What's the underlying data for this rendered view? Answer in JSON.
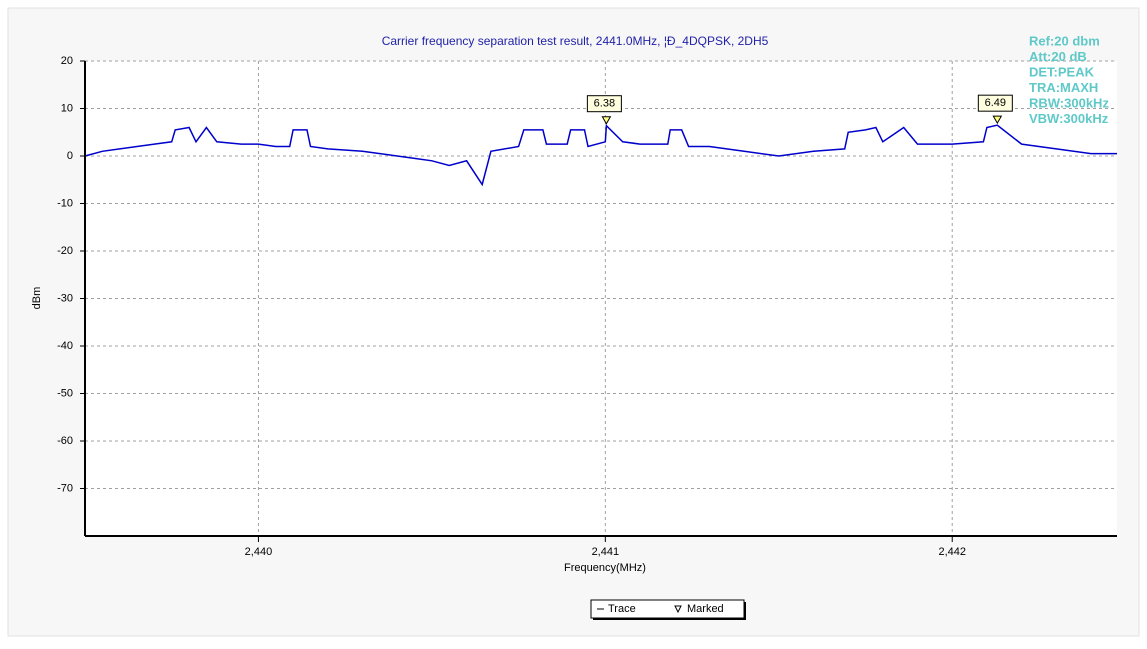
{
  "chart_data": {
    "type": "line",
    "title": "Carrier frequency separation test result, 2441.0MHz, ¦Ð_4DQPSK, 2DH5",
    "xlabel": "Frequency(MHz)",
    "ylabel": "dBm",
    "info": [
      "Ref:20 dbm",
      "Att:20 dB",
      "DET:PEAK",
      "TRA:MAXH",
      "RBW:300kHz",
      "VBW:300kHz"
    ],
    "xlim": [
      2439.5,
      2442.475
    ],
    "ylim": [
      -80,
      20
    ],
    "xticks": [
      {
        "value": 2440,
        "label": "2,440"
      },
      {
        "value": 2441,
        "label": "2,441"
      },
      {
        "value": 2442,
        "label": "2,442"
      }
    ],
    "yticks": [
      20,
      10,
      0,
      -10,
      -20,
      -30,
      -40,
      -50,
      -60,
      -70
    ],
    "grid": true,
    "legend": "bottom",
    "series": [
      {
        "name": "Trace",
        "color": "#0000cc",
        "x": [
          2439.5,
          2439.55,
          2439.6,
          2439.65,
          2439.7,
          2439.75,
          2439.76,
          2439.8,
          2439.82,
          2439.85,
          2439.88,
          2439.95,
          2440.0,
          2440.05,
          2440.09,
          2440.1,
          2440.14,
          2440.15,
          2440.2,
          2440.3,
          2440.35,
          2440.4,
          2440.45,
          2440.5,
          2440.55,
          2440.6,
          2440.645,
          2440.67,
          2440.75,
          2440.765,
          2440.82,
          2440.83,
          2440.89,
          2440.9,
          2440.94,
          2440.95,
          2441.0,
          2441.003,
          2441.05,
          2441.1,
          2441.18,
          2441.187,
          2441.22,
          2441.24,
          2441.3,
          2441.4,
          2441.5,
          2441.6,
          2441.69,
          2441.7,
          2441.75,
          2441.78,
          2441.8,
          2441.86,
          2441.9,
          2442.0,
          2442.09,
          2442.1,
          2442.13,
          2442.2,
          2442.3,
          2442.4,
          2442.475
        ],
        "values": [
          0,
          1,
          1.5,
          2,
          2.5,
          3,
          5.5,
          6,
          3,
          6,
          3,
          2.5,
          2.5,
          2,
          2,
          5.5,
          5.5,
          2,
          1.5,
          1,
          0.5,
          0,
          -0.5,
          -1,
          -2,
          -1,
          -6,
          1,
          2,
          5.5,
          5.5,
          2.5,
          2.5,
          5.5,
          5.5,
          2,
          3,
          6.38,
          3,
          2.5,
          2.5,
          5.5,
          5.5,
          2,
          2,
          1,
          0,
          1,
          1.5,
          5,
          5.5,
          6,
          3,
          6,
          2.5,
          2.5,
          3,
          6,
          6.49,
          2.5,
          1.5,
          0.5,
          0.5
        ]
      },
      {
        "name": "Marked",
        "color": "#ffff80",
        "x": [
          2441.003,
          2442.13
        ],
        "values": [
          6.38,
          6.49
        ]
      }
    ]
  }
}
